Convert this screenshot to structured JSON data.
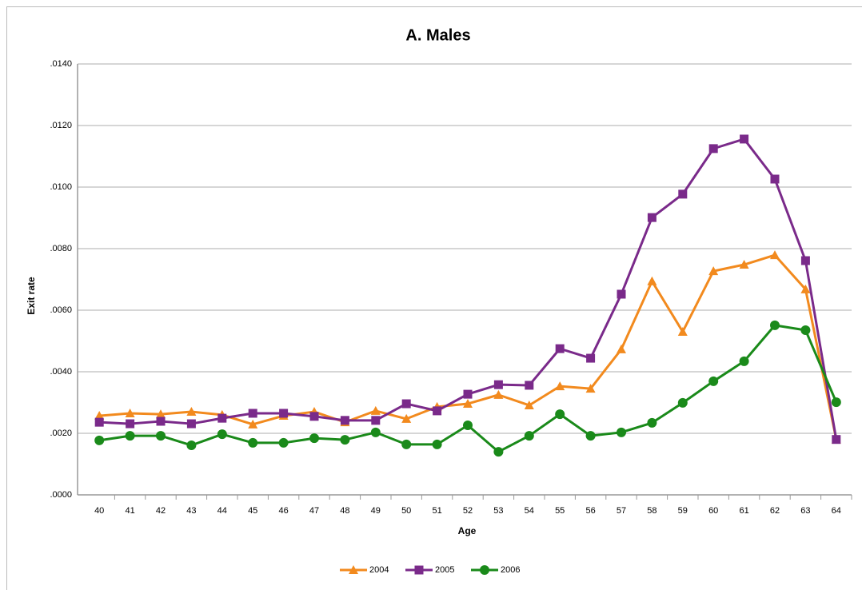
{
  "chart_data": {
    "type": "line",
    "title": "A. Males",
    "x_label": "Age",
    "y_label": "Exit rate",
    "categories": [
      "40",
      "41",
      "42",
      "43",
      "44",
      "45",
      "46",
      "47",
      "48",
      "49",
      "50",
      "51",
      "52",
      "53",
      "54",
      "55",
      "56",
      "57",
      "58",
      "59",
      "60",
      "61",
      "62",
      "63",
      "64"
    ],
    "ylim": [
      0,
      0.014
    ],
    "yticks": [
      {
        "value": 0,
        "label": ".0000"
      },
      {
        "value": 0.002,
        "label": ".0020"
      },
      {
        "value": 0.004,
        "label": ".0040"
      },
      {
        "value": 0.006,
        "label": ".0060"
      },
      {
        "value": 0.008,
        "label": ".0080"
      },
      {
        "value": 0.01,
        "label": ".0100"
      },
      {
        "value": 0.012,
        "label": ".0120"
      },
      {
        "value": 0.014,
        "label": ".0140"
      }
    ],
    "grid": true,
    "legend": "bottom",
    "series": [
      {
        "name": "2004",
        "color": "#f28a1e",
        "marker": "triangle",
        "values": [
          0.00257,
          0.00265,
          0.00262,
          0.0027,
          0.0026,
          0.00229,
          0.00257,
          0.0027,
          0.00236,
          0.00273,
          0.00247,
          0.00286,
          0.00296,
          0.00325,
          0.00291,
          0.00353,
          0.00345,
          0.00473,
          0.00694,
          0.0053,
          0.00727,
          0.00748,
          0.00779,
          0.00668,
          0.0018
        ]
      },
      {
        "name": "2005",
        "color": "#7a2a8a",
        "marker": "square",
        "values": [
          0.00236,
          0.00231,
          0.00239,
          0.00231,
          0.00249,
          0.00265,
          0.00265,
          0.00255,
          0.00242,
          0.00242,
          0.00296,
          0.00273,
          0.00327,
          0.00358,
          0.00356,
          0.00475,
          0.00444,
          0.00652,
          0.00901,
          0.00977,
          0.01125,
          0.01156,
          0.01026,
          0.00761,
          0.0018
        ]
      },
      {
        "name": "2006",
        "color": "#1a8a1a",
        "marker": "circle",
        "values": [
          0.00177,
          0.00192,
          0.00192,
          0.00161,
          0.00197,
          0.00169,
          0.00169,
          0.00184,
          0.00179,
          0.00203,
          0.00164,
          0.00164,
          0.00226,
          0.0014,
          0.00192,
          0.00262,
          0.00192,
          0.00203,
          0.00234,
          0.00299,
          0.00369,
          0.00434,
          0.00551,
          0.00535,
          0.00301
        ]
      }
    ]
  }
}
